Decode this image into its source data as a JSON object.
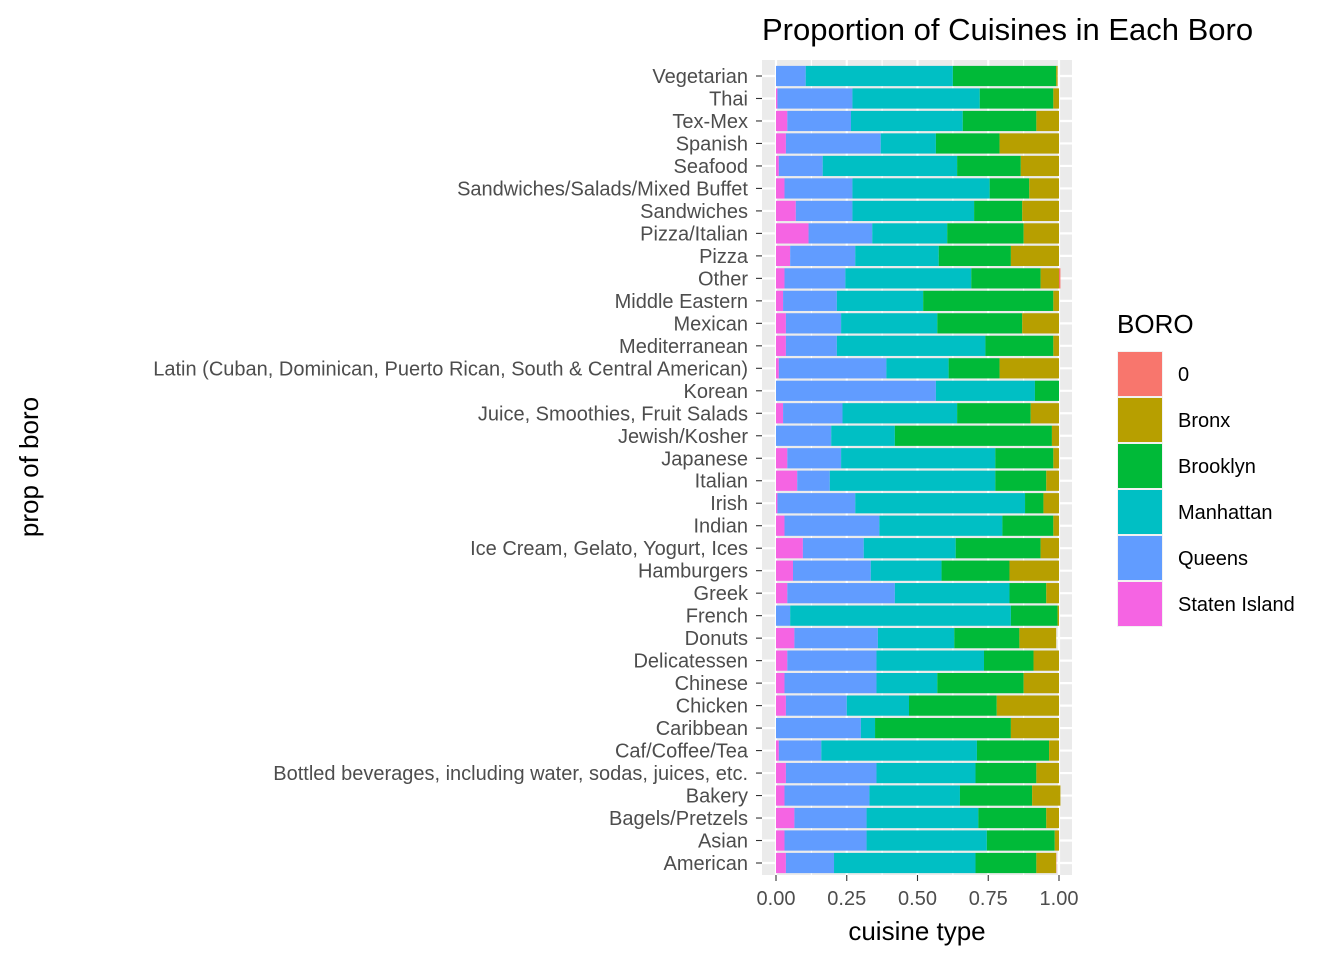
{
  "chart_data": {
    "type": "bar",
    "orientation": "horizontal",
    "stacked": true,
    "title": "Proportion of Cuisines in Each Boro",
    "xlabel": "cuisine type",
    "ylabel": "prop of boro",
    "xlim": [
      0,
      1
    ],
    "x_ticks": [
      "0.00",
      "0.25",
      "0.50",
      "0.75",
      "1.00"
    ],
    "grid": true,
    "legend": {
      "title": "BORO",
      "placement": "right"
    },
    "categories": [
      "American",
      "Asian",
      "Bagels/Pretzels",
      "Bakery",
      "Bottled beverages, including water, sodas, juices, etc.",
      "Caf/Coffee/Tea",
      "Caribbean",
      "Chicken",
      "Chinese",
      "Delicatessen",
      "Donuts",
      "French",
      "Greek",
      "Hamburgers",
      "Ice Cream, Gelato, Yogurt, Ices",
      "Indian",
      "Irish",
      "Italian",
      "Japanese",
      "Jewish/Kosher",
      "Juice, Smoothies, Fruit Salads",
      "Korean",
      "Latin (Cuban, Dominican, Puerto Rican, South & Central American)",
      "Mediterranean",
      "Mexican",
      "Middle Eastern",
      "Other",
      "Pizza",
      "Pizza/Italian",
      "Sandwiches",
      "Sandwiches/Salads/Mixed Buffet",
      "Seafood",
      "Spanish",
      "Tex-Mex",
      "Thai",
      "Vegetarian"
    ],
    "series": [
      {
        "name": "0",
        "color": "#F8766D",
        "values": [
          0.001,
          0,
          0,
          0,
          0,
          0,
          0,
          0,
          0,
          0,
          0,
          0,
          0,
          0,
          0,
          0,
          0,
          0,
          0,
          0,
          0,
          0,
          0,
          0,
          0,
          0,
          0.005,
          0,
          0,
          0,
          0,
          0,
          0,
          0,
          0,
          0
        ]
      },
      {
        "name": "Bronx",
        "color": "#B79F00",
        "values": [
          0.07,
          0.015,
          0.045,
          0.1,
          0.08,
          0.035,
          0.17,
          0.22,
          0.125,
          0.09,
          0.13,
          0.005,
          0.045,
          0.175,
          0.065,
          0.02,
          0.055,
          0.045,
          0.02,
          0.025,
          0.1,
          0,
          0.21,
          0.02,
          0.13,
          0.02,
          0.065,
          0.17,
          0.125,
          0.13,
          0.105,
          0.135,
          0.21,
          0.08,
          0.02,
          0.005
        ]
      },
      {
        "name": "Brooklyn",
        "color": "#00BA38",
        "values": [
          0.215,
          0.24,
          0.24,
          0.255,
          0.215,
          0.255,
          0.48,
          0.31,
          0.305,
          0.175,
          0.23,
          0.165,
          0.13,
          0.24,
          0.3,
          0.18,
          0.065,
          0.18,
          0.205,
          0.555,
          0.26,
          0.085,
          0.18,
          0.24,
          0.3,
          0.46,
          0.245,
          0.255,
          0.27,
          0.17,
          0.14,
          0.225,
          0.225,
          0.26,
          0.26,
          0.365
        ]
      },
      {
        "name": "Manhattan",
        "color": "#00BFC4",
        "values": [
          0.5,
          0.425,
          0.395,
          0.32,
          0.35,
          0.55,
          0.05,
          0.22,
          0.215,
          0.38,
          0.27,
          0.78,
          0.405,
          0.25,
          0.325,
          0.435,
          0.6,
          0.585,
          0.545,
          0.225,
          0.405,
          0.35,
          0.22,
          0.525,
          0.34,
          0.305,
          0.445,
          0.295,
          0.265,
          0.43,
          0.485,
          0.475,
          0.195,
          0.395,
          0.45,
          0.52
        ]
      },
      {
        "name": "Queens",
        "color": "#619CFF",
        "values": [
          0.17,
          0.29,
          0.255,
          0.3,
          0.32,
          0.15,
          0.3,
          0.215,
          0.325,
          0.315,
          0.295,
          0.05,
          0.38,
          0.275,
          0.215,
          0.335,
          0.275,
          0.115,
          0.19,
          0.195,
          0.21,
          0.565,
          0.38,
          0.18,
          0.195,
          0.19,
          0.215,
          0.23,
          0.225,
          0.2,
          0.24,
          0.155,
          0.335,
          0.225,
          0.265,
          0.105
        ]
      },
      {
        "name": "Staten Island",
        "color": "#F564E3",
        "values": [
          0.035,
          0.03,
          0.065,
          0.03,
          0.035,
          0.01,
          0,
          0.035,
          0.03,
          0.04,
          0.065,
          0,
          0.04,
          0.06,
          0.095,
          0.03,
          0.005,
          0.075,
          0.04,
          0,
          0.025,
          0,
          0.01,
          0.035,
          0.035,
          0.025,
          0.03,
          0.05,
          0.115,
          0.07,
          0.03,
          0.01,
          0.035,
          0.04,
          0.005,
          0
        ]
      }
    ]
  }
}
